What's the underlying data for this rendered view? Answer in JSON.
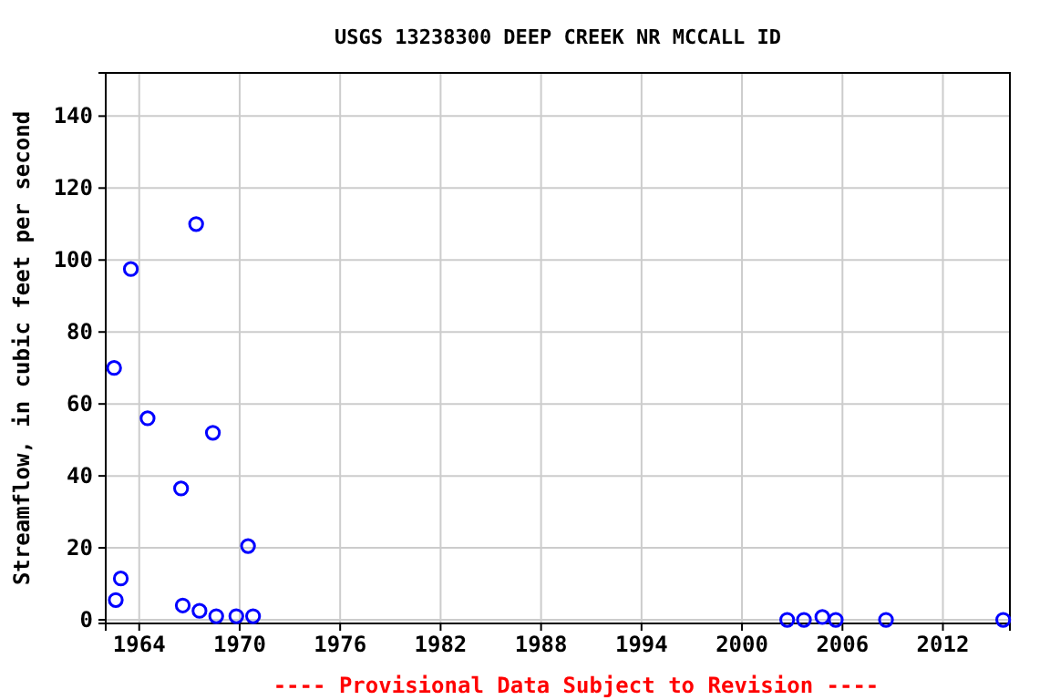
{
  "chart_data": {
    "type": "scatter",
    "title": "USGS 13238300 DEEP CREEK NR MCCALL ID",
    "ylabel": "Streamflow, in cubic feet per second",
    "x": [
      1962.5,
      1962.6,
      1962.9,
      1963.5,
      1964.5,
      1966.5,
      1966.6,
      1967.4,
      1967.6,
      1968.4,
      1968.6,
      1969.8,
      1970.5,
      1970.8,
      2002.7,
      2003.7,
      2004.8,
      2005.6,
      2008.6,
      2015.6
    ],
    "series": [
      {
        "color": "#0000ff",
        "values": [
          70,
          5.5,
          11.5,
          97.5,
          56,
          36.5,
          4,
          110,
          2.5,
          52,
          1,
          1,
          20.5,
          1,
          0,
          0,
          0.8,
          0,
          0,
          0
        ]
      }
    ],
    "xlim": [
      1962,
      2016
    ],
    "xticks": [
      1964,
      1970,
      1976,
      1982,
      1988,
      1994,
      2000,
      2006,
      2012
    ],
    "ylim": [
      -1,
      152
    ],
    "yticks": [
      0,
      20,
      40,
      60,
      80,
      100,
      120,
      140
    ],
    "grid": true,
    "marker": "circle",
    "annotations": [
      "---- Provisional Data Subject to Revision ----"
    ]
  }
}
